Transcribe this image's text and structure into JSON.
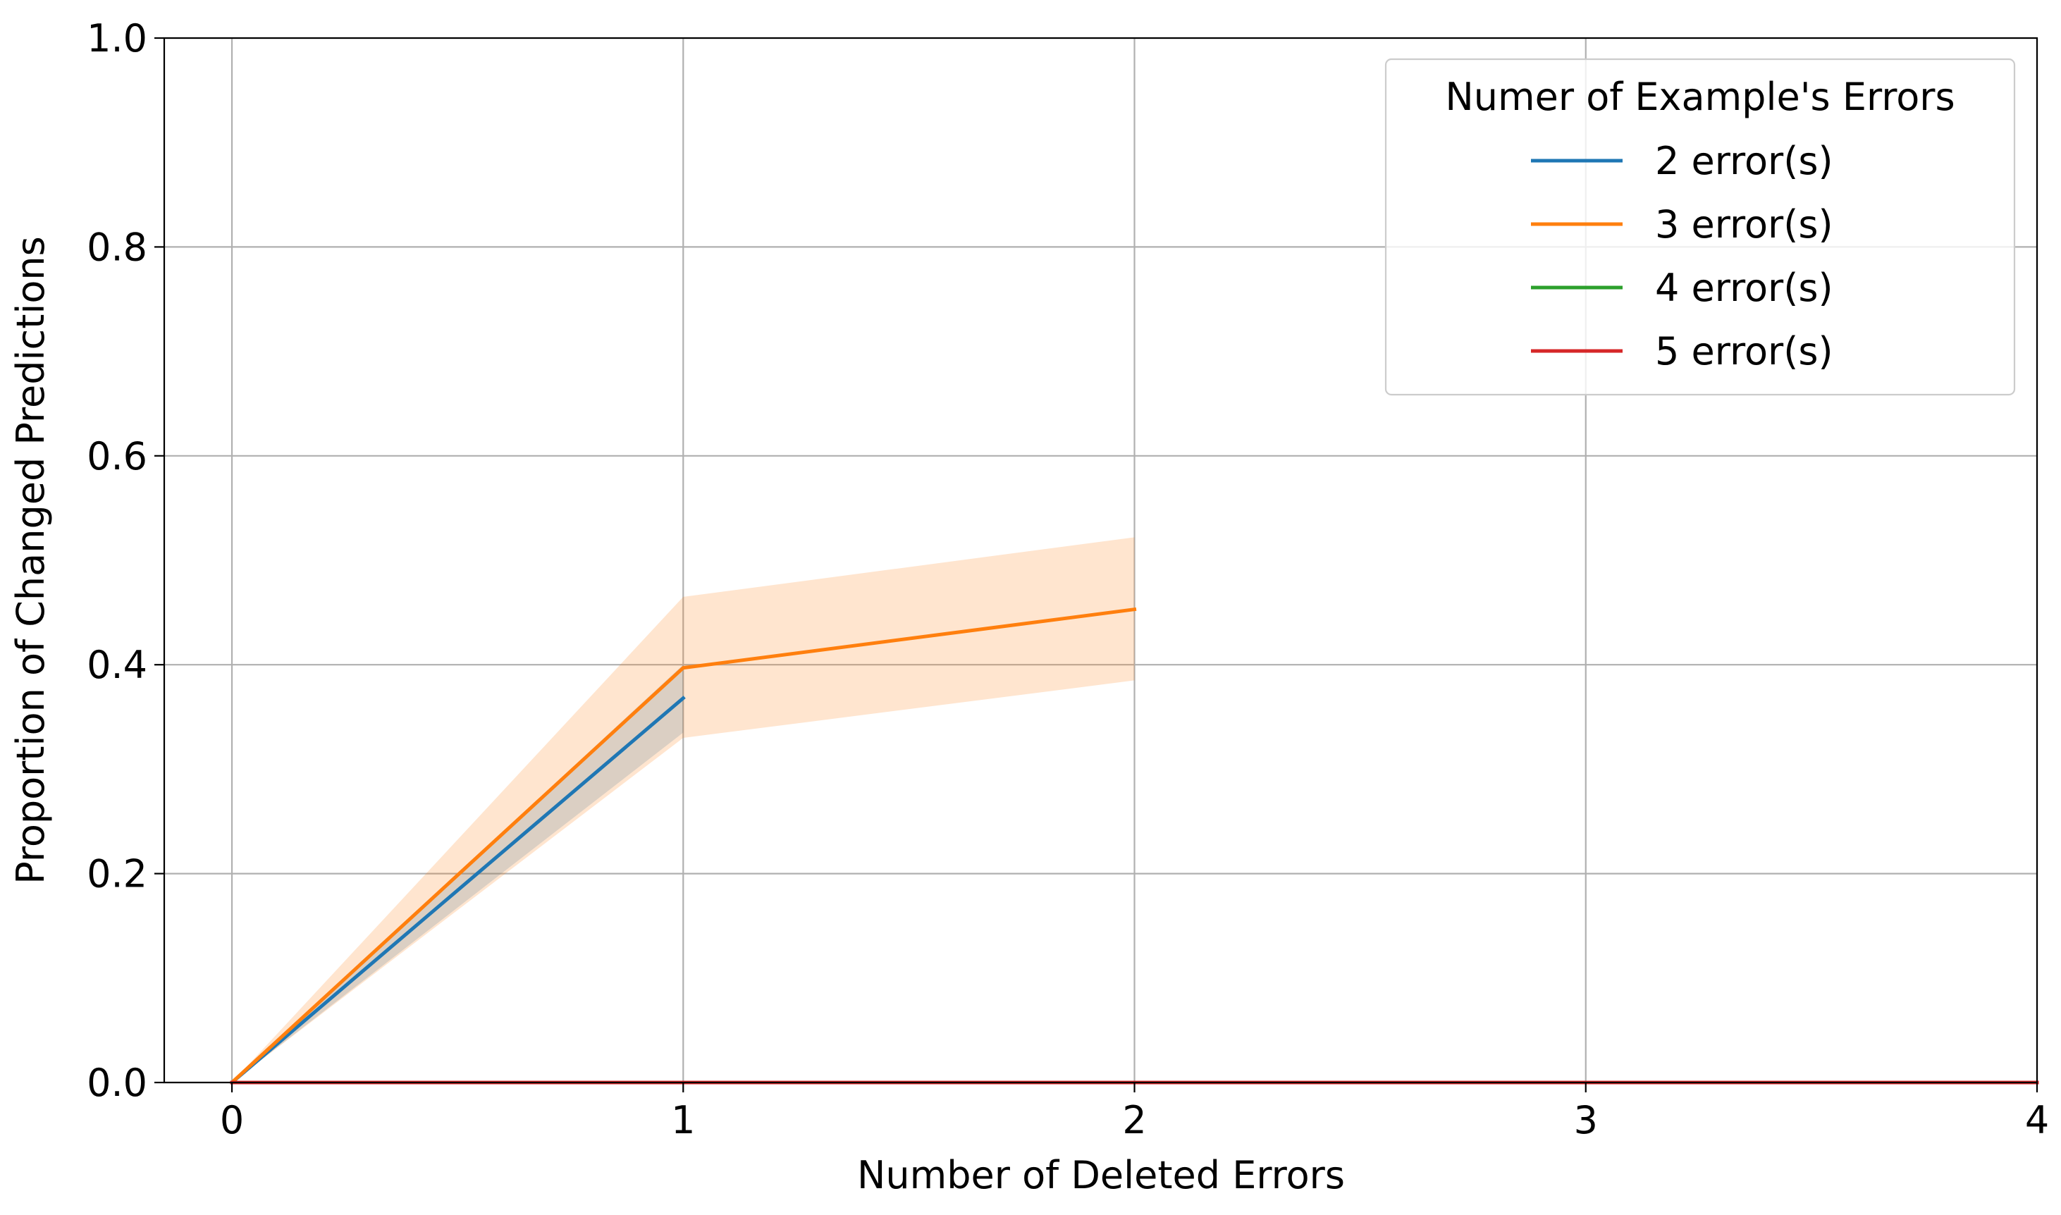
{
  "chart_data": {
    "type": "line",
    "title": "",
    "xlabel": "Number of Deleted Errors",
    "ylabel": "Proportion of Changed Predictions",
    "xlim": [
      -0.15,
      4.0
    ],
    "ylim": [
      0.0,
      1.0
    ],
    "xticks": [
      0,
      1,
      2,
      3,
      4
    ],
    "yticks": [
      0.0,
      0.2,
      0.4,
      0.6,
      0.8,
      1.0
    ],
    "xtick_labels": [
      "0",
      "1",
      "2",
      "3",
      "4"
    ],
    "ytick_labels": [
      "0.0",
      "0.2",
      "0.4",
      "0.6",
      "0.8",
      "1.0"
    ],
    "grid": true,
    "legend": {
      "title": "Numer of Example's Errors",
      "placement": "top-right"
    },
    "series": [
      {
        "name": "2 error(s)",
        "color": "#1f77b4",
        "x": [
          0,
          1
        ],
        "y": [
          0.0,
          0.368
        ],
        "band_low": [
          0.0,
          0.335
        ],
        "band_high": [
          0.0,
          0.4
        ]
      },
      {
        "name": "3 error(s)",
        "color": "#ff7f0e",
        "x": [
          0,
          1,
          2
        ],
        "y": [
          0.0,
          0.397,
          0.453
        ],
        "band_low": [
          0.0,
          0.33,
          0.385
        ],
        "band_high": [
          0.0,
          0.465,
          0.522
        ]
      },
      {
        "name": "4 error(s)",
        "color": "#2ca02c",
        "x": [
          0,
          1,
          2,
          3
        ],
        "y": [
          0.0,
          0.0,
          0.0,
          0.0
        ],
        "band_low": [
          0.0,
          0.0,
          0.0,
          0.0
        ],
        "band_high": [
          0.0,
          0.0,
          0.0,
          0.0
        ]
      },
      {
        "name": "5 error(s)",
        "color": "#d62728",
        "x": [
          0,
          1,
          2,
          3,
          4
        ],
        "y": [
          0.0,
          0.0,
          0.0,
          0.0,
          0.0
        ],
        "band_low": [
          0.0,
          0.0,
          0.0,
          0.0,
          0.0
        ],
        "band_high": [
          0.0,
          0.0,
          0.0,
          0.0,
          0.0
        ]
      }
    ]
  }
}
